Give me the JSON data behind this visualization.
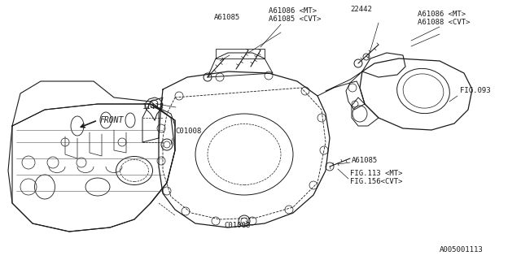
{
  "bg_color": "#ffffff",
  "line_color": "#1a1a1a",
  "labels": {
    "A61086_MT_top": "A61086 <MT>",
    "A61085_CVT_top": "A61085 <CVT>",
    "A61085_left": "A61085",
    "22442": "22442",
    "A61086_MT_right": "A61086 <MT>",
    "A61088_CVT": "A61088 <CVT>",
    "FIG093": "FIG.093",
    "11413": "11413",
    "C01008_left": "C01008",
    "C01008_bottom": "C01008",
    "A61085_right": "A61085",
    "FIG113_MT": "FIG.113 <MT>",
    "FIG156_CVT": "FIG.156<CVT>",
    "FRONT": "FRONT",
    "part_number": "A005001113"
  },
  "font_size": 6.5,
  "bold_font_size": 7
}
